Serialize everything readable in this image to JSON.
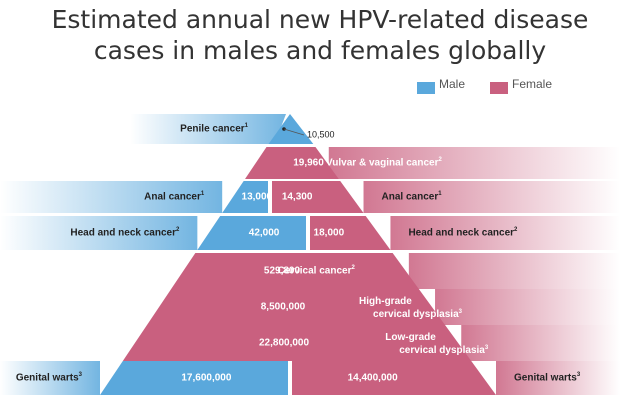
{
  "title_lines": [
    "Estimated annual new HPV-related disease",
    "cases in males and females globally"
  ],
  "legend": [
    {
      "label": "Male",
      "color": "#5aa8dc"
    },
    {
      "label": "Female",
      "color": "#c9607f"
    }
  ],
  "colors": {
    "male": "#5aa8dc",
    "female": "#c9607f"
  },
  "chart_data": {
    "type": "bar",
    "layout": "pyramid",
    "series": [
      {
        "name": "Male"
      },
      {
        "name": "Female"
      }
    ],
    "rows": [
      {
        "label": "Penile cancer",
        "sup": "1",
        "male": 10500,
        "male_text": "10,500"
      },
      {
        "label": "Vulvar & vaginal cancer",
        "sup": "2",
        "female": 19960,
        "female_text": "19,960"
      },
      {
        "label": "Anal cancer",
        "sup": "1",
        "male": 13000,
        "male_text": "13,000",
        "female": 14300,
        "female_text": "14,300"
      },
      {
        "label": "Head and neck cancer",
        "sup": "2",
        "male": 42000,
        "male_text": "42,000",
        "female": 18000,
        "female_text": "18,000"
      },
      {
        "label": "Cervical cancer",
        "sup": "2",
        "female": 529800,
        "female_text": "529,800"
      },
      {
        "label_lines": [
          "High-grade",
          "cervical dysplasia"
        ],
        "sup": "3",
        "female": 8500000,
        "female_text": "8,500,000"
      },
      {
        "label_lines": [
          "Low-grade",
          "cervical dysplasia"
        ],
        "sup": "3",
        "female": 22800000,
        "female_text": "22,800,000"
      },
      {
        "label": "Genital warts",
        "sup": "3",
        "male": 17600000,
        "male_text": "17,600,000",
        "female": 14400000,
        "female_text": "14,400,000"
      }
    ]
  }
}
